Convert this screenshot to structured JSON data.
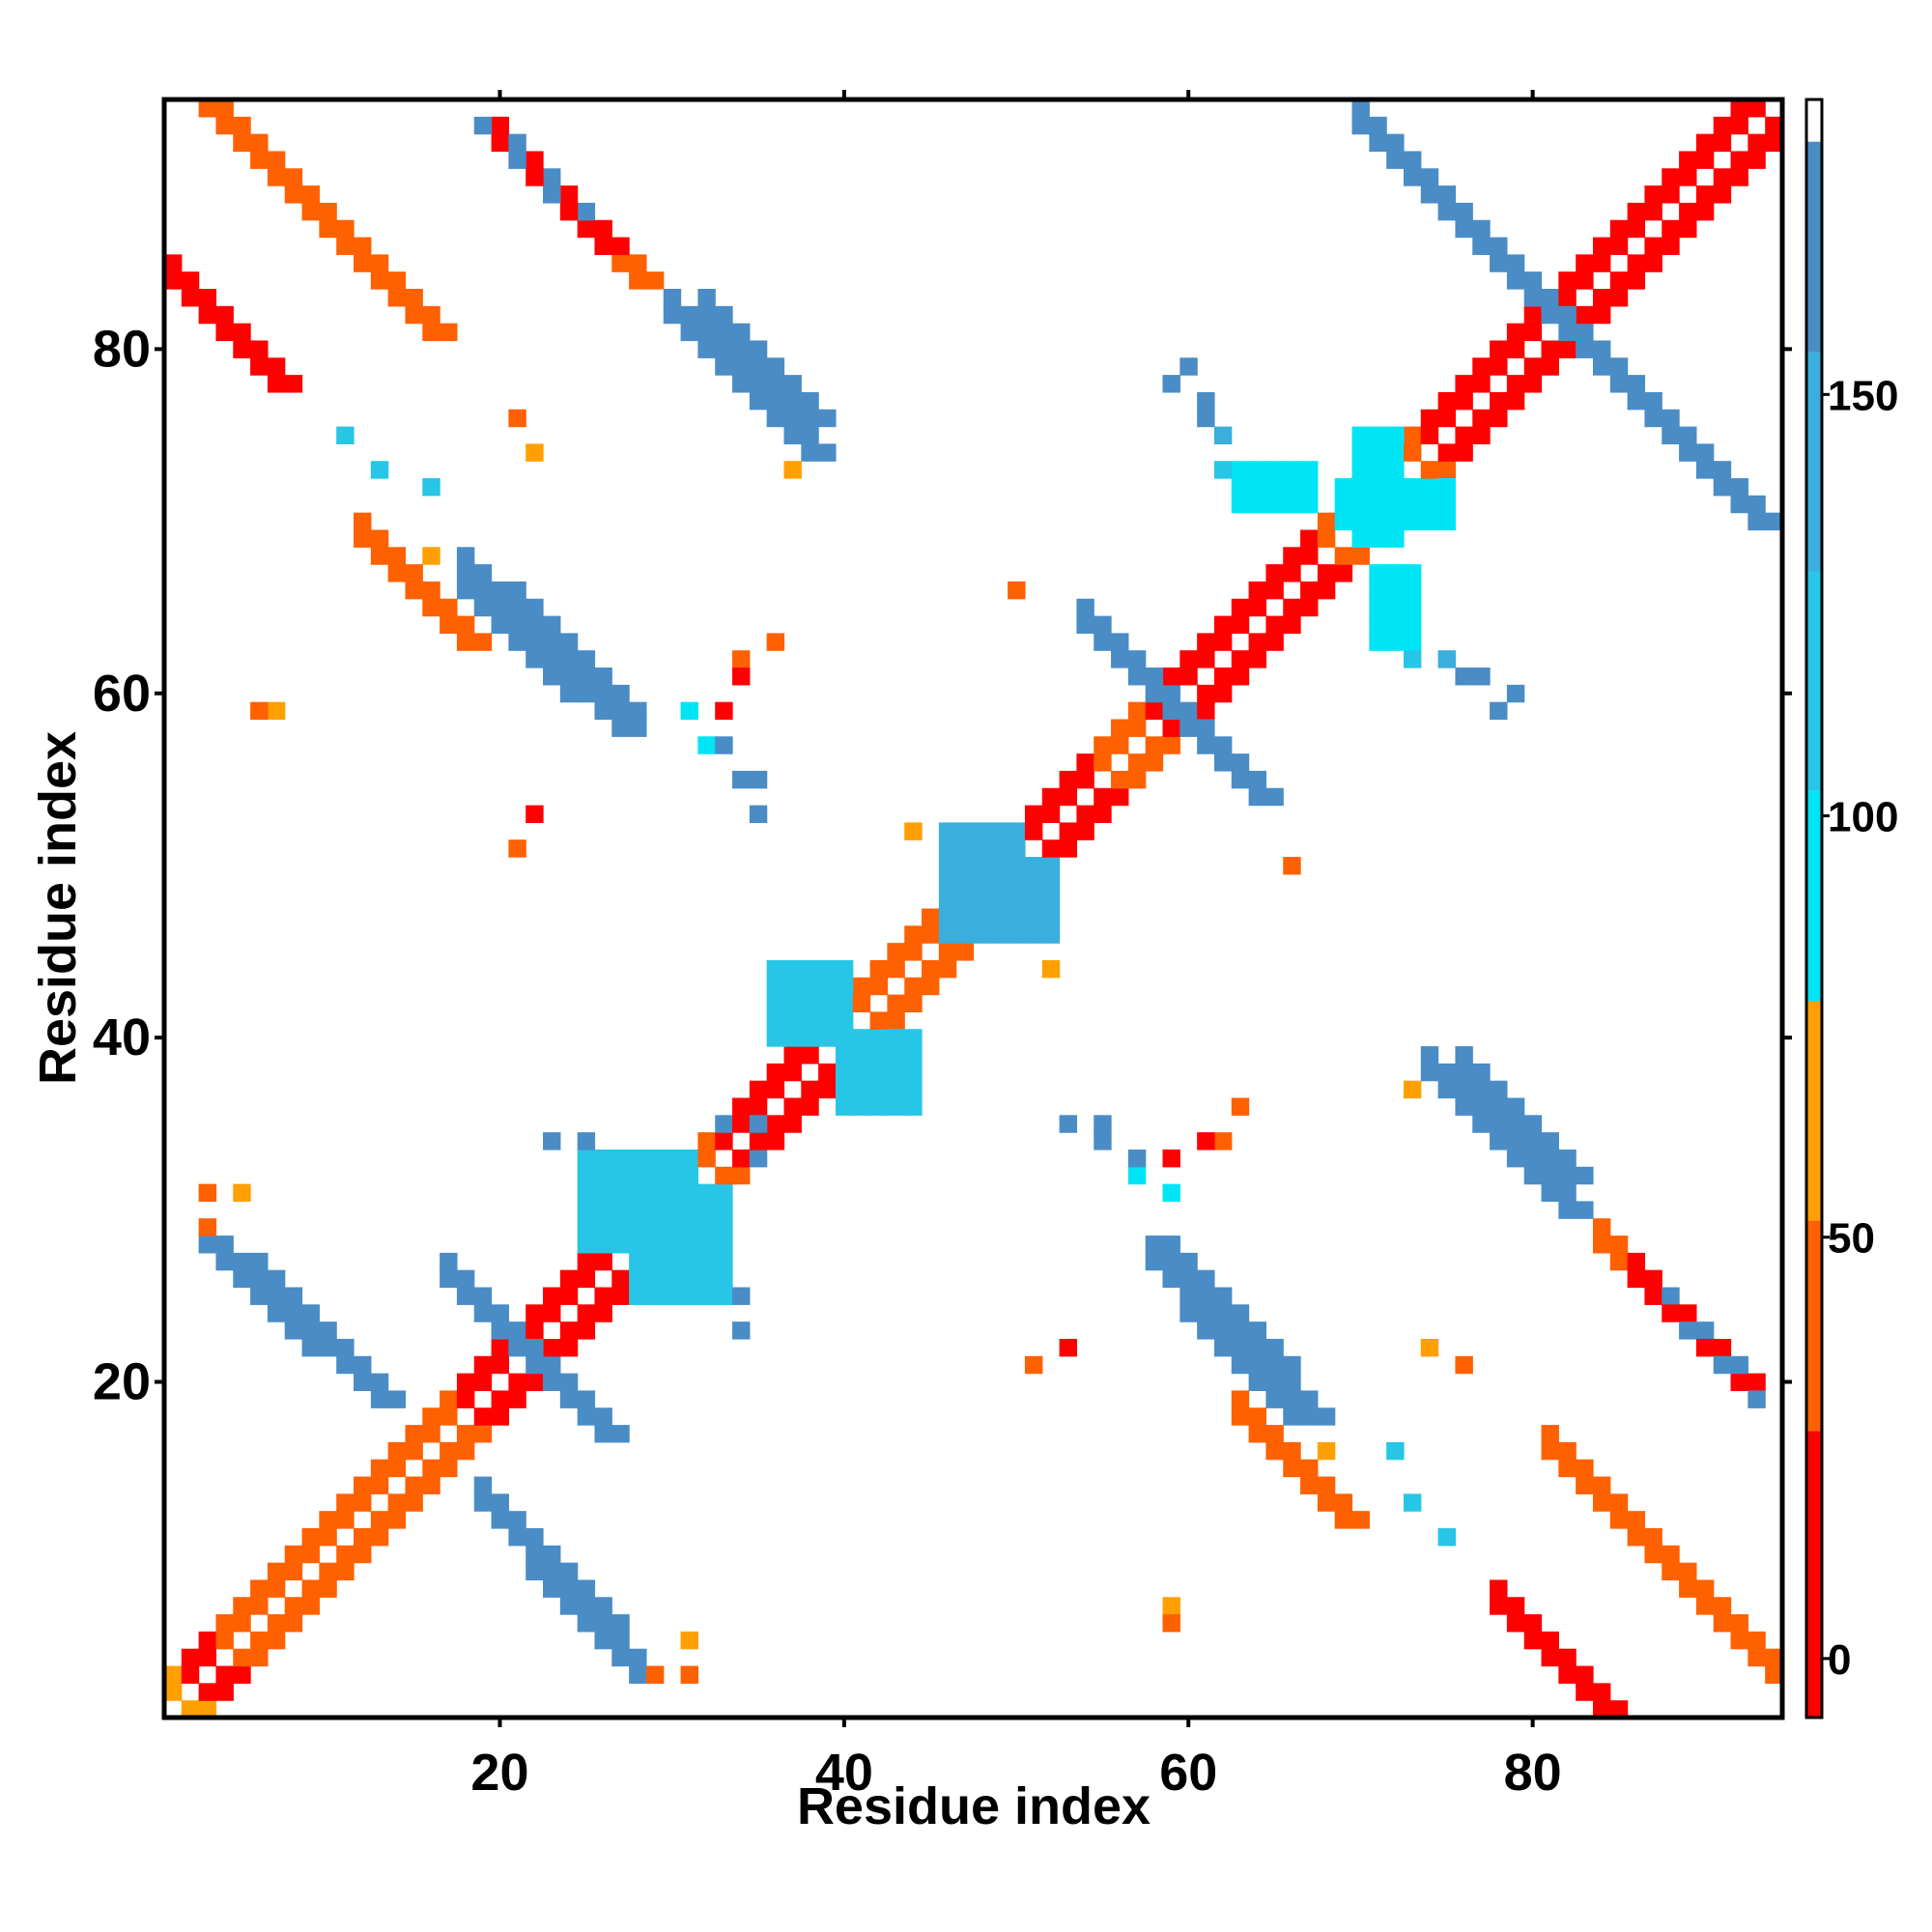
{
  "chart_data": {
    "type": "heatmap",
    "title": "",
    "xlabel": "Residue index",
    "ylabel": "Residue index",
    "xlim": [
      1,
      94
    ],
    "ylim": [
      1,
      94
    ],
    "xticks": [
      20,
      40,
      60,
      80
    ],
    "yticks": [
      20,
      40,
      60,
      80
    ],
    "colorbar": {
      "ticks": [
        0,
        50,
        100,
        150
      ],
      "range": [
        -7,
        180
      ],
      "segments": [
        {
          "from": -7,
          "to": 27,
          "color": "#ff0000"
        },
        {
          "from": 27,
          "to": 52,
          "color": "#ff6000"
        },
        {
          "from": 52,
          "to": 78,
          "color": "#ffa000"
        },
        {
          "from": 78,
          "to": 103,
          "color": "#00e5f5"
        },
        {
          "from": 103,
          "to": 129,
          "color": "#27c6e6"
        },
        {
          "from": 129,
          "to": 155,
          "color": "#3aaedc"
        },
        {
          "from": 155,
          "to": 180,
          "color": "#4a8cc6"
        },
        {
          "from": 180,
          "to": 185,
          "color": "#ffffff"
        }
      ]
    },
    "diagonal_bands": [
      {
        "start": 1,
        "end": 94,
        "level": 2
      },
      {
        "start": 2,
        "end": 93,
        "level": 0
      },
      {
        "start": 4,
        "end": 13,
        "level": 1
      },
      {
        "start": 13,
        "end": 18,
        "level": 1
      },
      {
        "start": 18,
        "end": 28,
        "level": 0
      },
      {
        "start": 28,
        "end": 33,
        "level": 1
      },
      {
        "start": 33,
        "end": 40,
        "level": 0
      },
      {
        "start": 40,
        "end": 45,
        "level": 1
      },
      {
        "start": 51,
        "end": 55,
        "level": 0
      },
      {
        "start": 55,
        "end": 58,
        "level": 1
      },
      {
        "start": 58,
        "end": 68,
        "level": 0
      },
      {
        "start": 68,
        "end": 74,
        "level": 1
      },
      {
        "start": 74,
        "end": 82,
        "level": 0
      },
      {
        "start": 82,
        "end": 94,
        "level": 0
      }
    ],
    "antidiagonal_bands": [
      {
        "sum": 97,
        "x_from": 2,
        "x_to": 16,
        "level": 1
      },
      {
        "sum": 97,
        "x_from": 81,
        "x_to": 94,
        "level": 1
      },
      {
        "sum": 43,
        "x_from": 17,
        "x_to": 26,
        "level": 6
      },
      {
        "sum": 32,
        "x_from": 6,
        "x_to": 13,
        "level": 6
      },
      {
        "sum": 86,
        "x_from": 21,
        "x_to": 27,
        "level": 6
      },
      {
        "sum": 112,
        "x_from": 30,
        "x_to": 38,
        "level": 6
      },
      {
        "sum": 118,
        "x_from": 55,
        "x_to": 64,
        "level": 6
      },
      {
        "sum": 163,
        "x_from": 72,
        "x_to": 82,
        "level": 6
      },
      {
        "sum": 163,
        "x_from": 82,
        "x_to": 93,
        "level": 6
      },
      {
        "sum": 85,
        "x_from": 58,
        "x_to": 67,
        "level": 6
      },
      {
        "sum": 114,
        "x_from": 76,
        "x_to": 82,
        "level": 6
      },
      {
        "sum": 31,
        "x_from": 22,
        "x_to": 28,
        "level": 6
      },
      {
        "sum": 84,
        "x_from": 18,
        "x_to": 24,
        "level": 6
      },
      {
        "sum": 112,
        "x_from": 84,
        "x_to": 90,
        "level": 1
      },
      {
        "sum": 81,
        "x_from": 12,
        "x_to": 18,
        "level": 1
      },
      {
        "sum": 112,
        "x_from": 20,
        "x_to": 26,
        "level": 0
      },
      {
        "sum": 85,
        "x_from": 78,
        "x_to": 84,
        "level": 0
      }
    ],
    "blocks": [
      {
        "x": [
          36,
          39
        ],
        "y": [
          40,
          44
        ],
        "level": 4
      },
      {
        "x": [
          40,
          44
        ],
        "y": [
          36,
          40
        ],
        "level": 4
      },
      {
        "x": [
          46,
          50
        ],
        "y": [
          46,
          52
        ],
        "level": 5
      },
      {
        "x": [
          25,
          30
        ],
        "y": [
          28,
          33
        ],
        "level": 4
      },
      {
        "x": [
          30,
          33
        ],
        "y": [
          26,
          31
        ],
        "level": 4
      },
      {
        "x": [
          69,
          75
        ],
        "y": [
          70,
          72
        ],
        "level": 3
      },
      {
        "x": [
          71,
          73
        ],
        "y": [
          63,
          67
        ],
        "level": 3
      }
    ],
    "scatter_points": [
      {
        "x": 21,
        "y": 92,
        "level": 6
      },
      {
        "x": 23,
        "y": 90,
        "level": 6
      },
      {
        "x": 25,
        "y": 88,
        "level": 6
      },
      {
        "x": 11,
        "y": 75,
        "level": 5
      },
      {
        "x": 13,
        "y": 73,
        "level": 6
      },
      {
        "x": 16,
        "y": 72,
        "level": 4
      },
      {
        "x": 60,
        "y": 79,
        "level": 6
      },
      {
        "x": 61,
        "y": 77,
        "level": 6
      },
      {
        "x": 62,
        "y": 75,
        "level": 5
      },
      {
        "x": 34,
        "y": 62,
        "level": 1
      },
      {
        "x": 33,
        "y": 59,
        "level": 0
      },
      {
        "x": 32,
        "y": 57,
        "level": 3
      },
      {
        "x": 34,
        "y": 55,
        "level": 6
      },
      {
        "x": 35,
        "y": 53,
        "level": 6
      },
      {
        "x": 7,
        "y": 59,
        "level": 2
      },
      {
        "x": 21,
        "y": 51,
        "level": 1
      },
      {
        "x": 22,
        "y": 53,
        "level": 0
      },
      {
        "x": 73,
        "y": 62,
        "level": 4
      },
      {
        "x": 76,
        "y": 61,
        "level": 6
      },
      {
        "x": 78,
        "y": 59,
        "level": 6
      },
      {
        "x": 55,
        "y": 35,
        "level": 6
      },
      {
        "x": 57,
        "y": 33,
        "level": 6
      },
      {
        "x": 59,
        "y": 31,
        "level": 3
      },
      {
        "x": 61,
        "y": 34,
        "level": 0
      },
      {
        "x": 63,
        "y": 36,
        "level": 1
      },
      {
        "x": 72,
        "y": 16,
        "level": 4
      },
      {
        "x": 73,
        "y": 13,
        "level": 4
      },
      {
        "x": 75,
        "y": 11,
        "level": 4
      },
      {
        "x": 74,
        "y": 22,
        "level": 2
      },
      {
        "x": 89,
        "y": 23,
        "level": 6
      },
      {
        "x": 91,
        "y": 21,
        "level": 6
      },
      {
        "x": 93,
        "y": 19,
        "level": 6
      },
      {
        "x": 59,
        "y": 6,
        "level": 1
      },
      {
        "x": 34,
        "y": 25,
        "level": 6
      },
      {
        "x": 34,
        "y": 23,
        "level": 6
      },
      {
        "x": 33,
        "y": 35,
        "level": 6
      },
      {
        "x": 35,
        "y": 35,
        "level": 6
      },
      {
        "x": 5,
        "y": 31,
        "level": 2
      },
      {
        "x": 66,
        "y": 50,
        "level": 1
      },
      {
        "x": 68,
        "y": 16,
        "level": 2
      },
      {
        "x": 31,
        "y": 3,
        "level": 1
      },
      {
        "x": 29,
        "y": 3,
        "level": 1
      },
      {
        "x": 37,
        "y": 73,
        "level": 2
      },
      {
        "x": 21,
        "y": 76,
        "level": 1
      },
      {
        "x": 52,
        "y": 44,
        "level": 2
      }
    ]
  }
}
